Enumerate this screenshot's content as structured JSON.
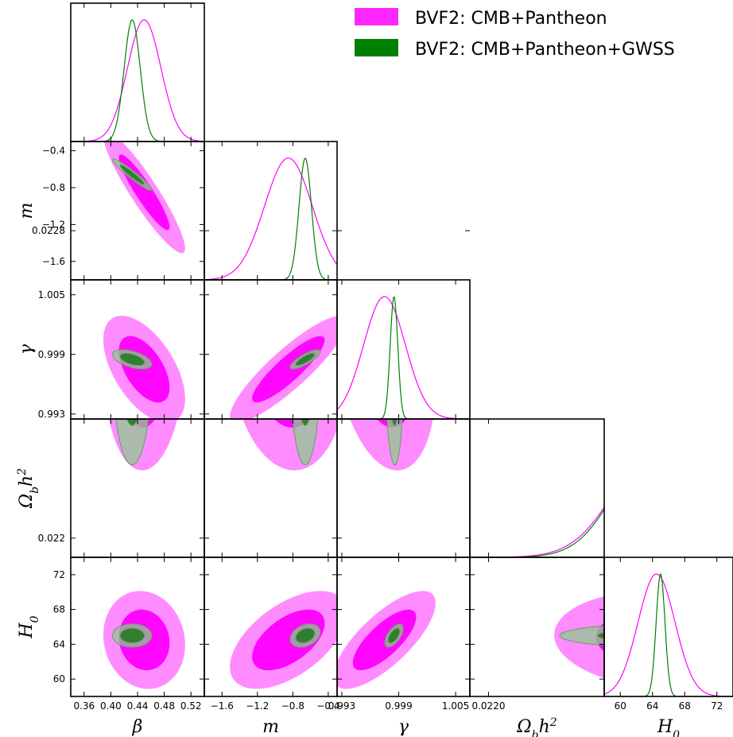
{
  "chart_data": {
    "type": "triangle",
    "parameters": [
      {
        "label": "β",
        "sub": "",
        "sup": "",
        "range": [
          0.34,
          0.54
        ],
        "ticks": [
          0.36,
          0.4,
          0.44,
          0.48,
          0.52
        ],
        "tick_labels": [
          "0.36",
          "0.40",
          "0.44",
          "0.48",
          "0.52"
        ]
      },
      {
        "label": "m",
        "sub": "",
        "sup": "",
        "range": [
          -1.8,
          -0.3
        ],
        "ticks": [
          -1.6,
          -1.2,
          -0.8,
          -0.4
        ],
        "tick_labels": [
          "−1.6",
          "−1.2",
          "−0.8",
          "−0.4"
        ]
      },
      {
        "label": "γ",
        "sub": "",
        "sup": "",
        "range": [
          0.9925,
          1.0065
        ],
        "ticks": [
          0.993,
          0.999,
          1.005
        ],
        "tick_labels": [
          "0.993",
          "0.999",
          "1.005"
        ]
      },
      {
        "label": "Ω",
        "sub": "b",
        "sup": "2",
        "extra": "h",
        "range": [
          0.02195,
          0.02231
        ],
        "ticks": [
          0.022,
          0.0228
        ],
        "tick_labels": [
          "0.0220",
          "0.0228"
        ]
      },
      {
        "label": "H",
        "sub": "0",
        "sup": "",
        "range": [
          58.0,
          74.0
        ],
        "ticks": [
          60,
          64,
          68,
          72
        ],
        "tick_labels": [
          "60",
          "64",
          "68",
          "72"
        ]
      }
    ],
    "y_tick_labels": {
      "m": [
        "−0.4",
        "−0.8",
        "−1.2",
        "−1.6"
      ],
      "γ": [
        "1.005",
        "0.999",
        "0.993"
      ],
      "Ωbh2": [
        "0.0228",
        "0.022"
      ],
      "H0": [
        "72",
        "68",
        "64",
        "60"
      ]
    },
    "series": [
      {
        "name": "BVF2: CMB+Pantheon",
        "color": "#ff00ff",
        "means": [
          0.45,
          -0.85,
          0.9975,
          0.02247,
          64.5
        ],
        "sigmas": [
          0.025,
          0.27,
          0.0022,
          0.00012,
          2.3
        ],
        "correlations": {
          "0-1": -0.92,
          "0-2": -0.55,
          "1-2": 0.88,
          "0-3": 0.05,
          "1-3": -0.1,
          "2-3": -0.25,
          "0-4": -0.1,
          "1-4": 0.55,
          "2-4": 0.75,
          "3-4": -0.1
        }
      },
      {
        "name": "BVF2: CMB+Pantheon+GWSS",
        "color": "#008000",
        "means": [
          0.432,
          -0.66,
          0.9985,
          0.02246,
          65.0
        ],
        "sigmas": [
          0.012,
          0.07,
          0.0004,
          0.00011,
          0.55
        ],
        "correlations": {
          "0-1": -0.95,
          "0-2": -0.5,
          "1-2": 0.8,
          "0-3": 0.0,
          "1-3": 0.0,
          "2-3": -0.1,
          "0-4": 0.0,
          "1-4": 0.3,
          "2-4": 0.6,
          "3-4": 0.0
        }
      }
    ],
    "contour_levels": [
      "68%",
      "95%"
    ],
    "legend_position": "top-right"
  }
}
